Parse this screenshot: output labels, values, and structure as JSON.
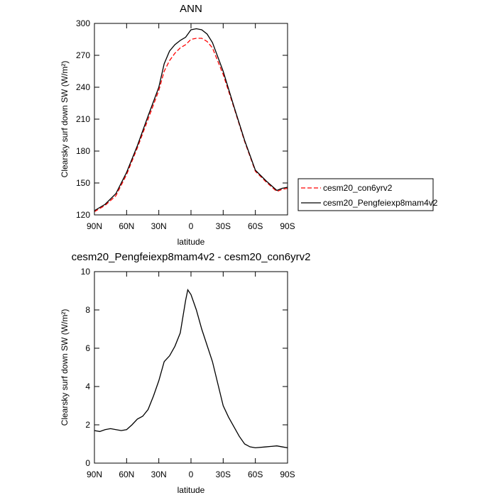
{
  "chart_data": [
    {
      "type": "line",
      "title": "ANN",
      "xlabel": "latitude",
      "ylabel": "Clearsky surf down SW (W/m²)",
      "xlim": [
        90,
        -90
      ],
      "xticks": [
        {
          "value": 90,
          "label": "90N"
        },
        {
          "value": 60,
          "label": "60N"
        },
        {
          "value": 30,
          "label": "30N"
        },
        0,
        {
          "value": -30,
          "label": "30S"
        },
        {
          "value": -60,
          "label": "60S"
        },
        {
          "value": -90,
          "label": "90S"
        }
      ],
      "ylim": [
        120,
        300
      ],
      "yticks": [
        120,
        150,
        180,
        210,
        240,
        270,
        300
      ],
      "legend": "right",
      "x": [
        90,
        80,
        70,
        60,
        50,
        40,
        30,
        25,
        20,
        15,
        10,
        5,
        0,
        -5,
        -10,
        -15,
        -20,
        -30,
        -40,
        -50,
        -60,
        -70,
        -80,
        -85,
        -90
      ],
      "series": [
        {
          "name": "cesm20_con6yrv2",
          "color": "#ff0000",
          "dashed": true,
          "values": [
            123,
            129,
            138,
            158,
            183,
            210,
            237,
            255,
            265,
            272,
            277,
            280,
            285,
            286,
            286,
            283,
            277,
            252,
            221,
            189,
            161,
            151,
            142,
            144,
            145
          ]
        },
        {
          "name": "cesm20_Pengfeiexp8mam4v2",
          "color": "#000000",
          "dashed": false,
          "values": [
            124,
            130,
            140,
            160,
            185,
            213,
            240,
            262,
            274,
            280,
            284,
            287,
            294,
            295,
            294,
            290,
            282,
            255,
            222,
            190,
            162,
            152,
            143,
            145,
            146
          ]
        }
      ]
    },
    {
      "type": "line",
      "title": "cesm20_Pengfeiexp8mam4v2 - cesm20_con6yrv2",
      "xlabel": "latitude",
      "ylabel": "Clearsky surf down SW (W/m²)",
      "xlim": [
        90,
        -90
      ],
      "xticks": [
        {
          "value": 90,
          "label": "90N"
        },
        {
          "value": 60,
          "label": "60N"
        },
        {
          "value": 30,
          "label": "30N"
        },
        0,
        {
          "value": -30,
          "label": "30S"
        },
        {
          "value": -60,
          "label": "60S"
        },
        {
          "value": -90,
          "label": "90S"
        }
      ],
      "ylim": [
        0,
        10
      ],
      "yticks": [
        0,
        2,
        4,
        6,
        8,
        10
      ],
      "x": [
        90,
        85,
        80,
        75,
        70,
        65,
        60,
        55,
        50,
        45,
        40,
        35,
        30,
        25,
        20,
        15,
        10,
        5,
        3,
        0,
        -5,
        -10,
        -20,
        -30,
        -35,
        -40,
        -45,
        -50,
        -55,
        -60,
        -70,
        -80,
        -85,
        -90
      ],
      "series": [
        {
          "color": "#000000",
          "dashed": false,
          "values": [
            1.7,
            1.65,
            1.75,
            1.8,
            1.75,
            1.7,
            1.75,
            2.0,
            2.3,
            2.45,
            2.8,
            3.5,
            4.3,
            5.3,
            5.6,
            6.1,
            6.8,
            8.5,
            9.05,
            8.8,
            8.0,
            7.0,
            5.3,
            3.0,
            2.4,
            1.9,
            1.4,
            1.0,
            0.85,
            0.8,
            0.85,
            0.9,
            0.85,
            0.8
          ]
        }
      ]
    }
  ]
}
